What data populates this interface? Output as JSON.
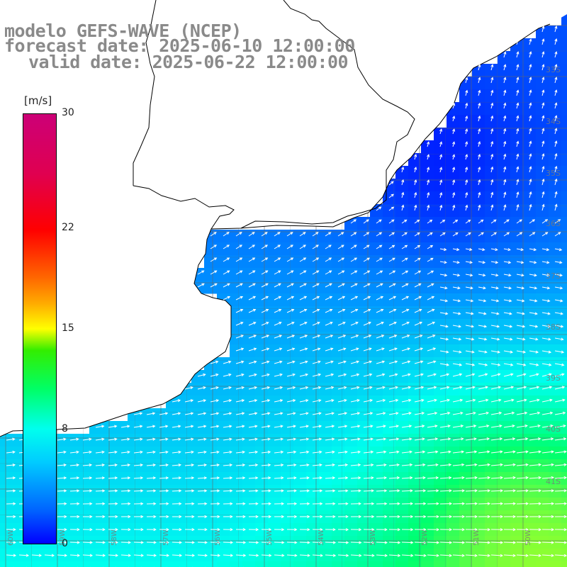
{
  "title": {
    "line1": "modelo GEFS-WAVE (NCEP)",
    "line2": "forecast date: 2025-06-10 12:00:00",
    "line3": "valid date: 2025-06-22 12:00:00"
  },
  "colorbar": {
    "unit": "[m/s]",
    "ticks": [
      {
        "label": "30",
        "value": 30
      },
      {
        "label": "22",
        "value": 22
      },
      {
        "label": "15",
        "value": 15
      },
      {
        "label": "8",
        "value": 8
      },
      {
        "label": "0",
        "value": 0
      }
    ],
    "colors": [
      "#0000ff",
      "#00ccff",
      "#00ffee",
      "#00ff66",
      "#ffff00",
      "#ff6600",
      "#ff0000",
      "#cc0077"
    ]
  },
  "map": {
    "lat_labels": [
      "33S",
      "34S",
      "35S",
      "36S",
      "37S",
      "38S",
      "39S",
      "40S",
      "41S"
    ],
    "lon_labels": [
      "60W",
      "59W",
      "58W",
      "57W",
      "56W",
      "55W",
      "54W",
      "53W",
      "52W",
      "51W",
      "50W"
    ],
    "land_color": "#ffffff",
    "coast_color": "#000000",
    "grid_color": "#666666",
    "arrow_color": "#ffffff"
  }
}
